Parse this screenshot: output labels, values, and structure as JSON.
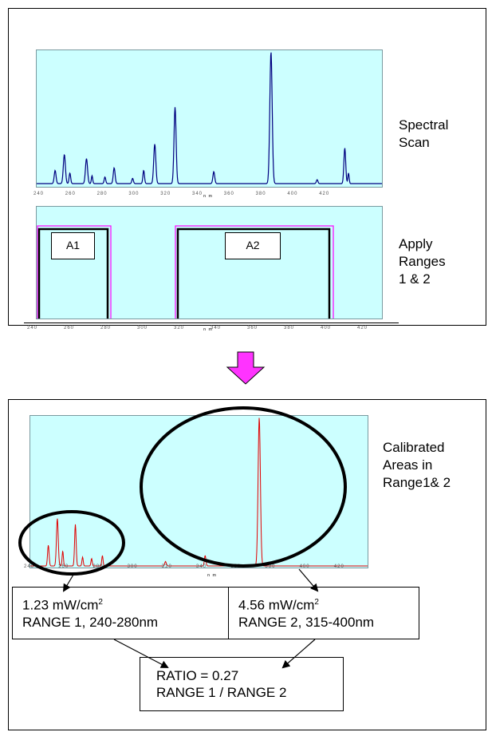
{
  "panel1": {
    "label_line1": "Spectral",
    "label_line2": "Scan",
    "x_ticks": [
      "240",
      "260",
      "280",
      "300",
      "320",
      "340",
      "360",
      "380",
      "400",
      "420"
    ],
    "x_unit": "n m"
  },
  "panel2": {
    "label_line1": "Apply",
    "label_line2": "Ranges",
    "label_line3": "1 & 2",
    "range1_tag": "A1",
    "range2_tag": "A2",
    "x_ticks": [
      "240",
      "260",
      "280",
      "300",
      "320",
      "340",
      "360",
      "380",
      "400",
      "420"
    ],
    "x_unit": "n m"
  },
  "panel3": {
    "label_line1": "Calibrated",
    "label_line2": "Areas in",
    "label_line3": "Range1& 2",
    "x_ticks": [
      "240",
      "260",
      "280",
      "300",
      "320",
      "340",
      "360",
      "380",
      "400",
      "420"
    ],
    "x_unit": "n m"
  },
  "result1": {
    "value": "1.23 mW/cm",
    "sup": "2",
    "range": "RANGE 1, 240-280nm"
  },
  "result2": {
    "value": "4.56 mW/cm",
    "sup": "2",
    "range": "RANGE 2, 315-400nm"
  },
  "ratio": {
    "line1": "RATIO = 0.27",
    "line2": "RANGE 1 / RANGE 2"
  },
  "colors": {
    "plot_bg": "#ccffff",
    "spectrum": "#000080",
    "calibrated": "#ff0000",
    "range_box": "#ff00ff",
    "arrow": "#ff33ff"
  }
}
